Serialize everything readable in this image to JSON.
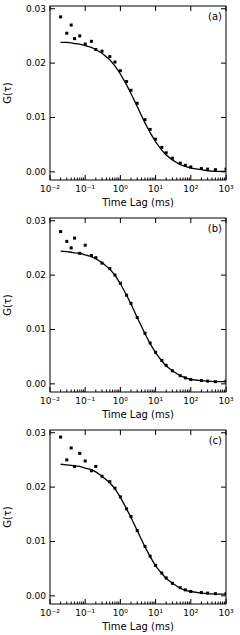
{
  "chart_data": [
    {
      "type": "scatter",
      "title": "(a)",
      "x_label": "Time Lag (ms)",
      "y_label": "G(τ)",
      "log": "x",
      "x": [
        0.02,
        0.03,
        0.04,
        0.05,
        0.07,
        0.1,
        0.15,
        0.2,
        0.3,
        0.5,
        0.7,
        1,
        1.5,
        2,
        3,
        5,
        7,
        10,
        15,
        20,
        30,
        50,
        70,
        100,
        200,
        300,
        500,
        1000
      ],
      "xlim": [
        0.01,
        1000
      ],
      "ylim": [
        -0.0015,
        0.0305
      ],
      "xticks": [
        {
          "value": 0.01,
          "label": "10⁻²"
        },
        {
          "value": 0.1,
          "label": "10⁻¹"
        },
        {
          "value": 1,
          "label": "10⁰"
        },
        {
          "value": 10,
          "label": "10¹"
        },
        {
          "value": 100,
          "label": "10²"
        },
        {
          "value": 1000,
          "label": "10³"
        }
      ],
      "yticks": [
        {
          "value": 0,
          "label": "0.00"
        },
        {
          "value": 0.01,
          "label": "0.01"
        },
        {
          "value": 0.02,
          "label": "0.02"
        },
        {
          "value": 0.03,
          "label": "0.03"
        }
      ],
      "series": [
        {
          "type": "scatter",
          "marker": "square",
          "color": "#000000",
          "values": [
            0.0285,
            0.0255,
            0.027,
            0.0245,
            0.025,
            0.0235,
            0.024,
            0.0225,
            0.0222,
            0.0212,
            0.0202,
            0.0186,
            0.0166,
            0.015,
            0.0126,
            0.0096,
            0.0078,
            0.006,
            0.0045,
            0.0035,
            0.0025,
            0.0016,
            0.0012,
            0.0009,
            0.0006,
            0.0005,
            0.0004,
            0.0005
          ]
        },
        {
          "type": "line",
          "line_style": "solid",
          "color": "#000000",
          "values": [
            0.0238,
            0.0238,
            0.0237,
            0.0236,
            0.0235,
            0.0232,
            0.0229,
            0.0225,
            0.0218,
            0.0206,
            0.0195,
            0.018,
            0.016,
            0.0144,
            0.012,
            0.009,
            0.0072,
            0.0055,
            0.004,
            0.0031,
            0.0022,
            0.0013,
            0.001,
            0.0007,
            0.0004,
            0.0002,
            0.0001,
            0.0001
          ]
        }
      ]
    },
    {
      "type": "scatter",
      "title": "(b)",
      "x_label": "Time Lag (ms)",
      "y_label": "G(τ)",
      "log": "x",
      "x": [
        0.02,
        0.03,
        0.04,
        0.05,
        0.07,
        0.1,
        0.15,
        0.2,
        0.3,
        0.5,
        0.7,
        1,
        1.5,
        2,
        3,
        5,
        7,
        10,
        15,
        20,
        30,
        50,
        70,
        100,
        200,
        300,
        500,
        1000
      ],
      "xlim": [
        0.01,
        1000
      ],
      "ylim": [
        -0.0015,
        0.0305
      ],
      "xticks": [
        {
          "value": 0.01,
          "label": "10⁻²"
        },
        {
          "value": 0.1,
          "label": "10⁻¹"
        },
        {
          "value": 1,
          "label": "10⁰"
        },
        {
          "value": 10,
          "label": "10¹"
        },
        {
          "value": 100,
          "label": "10²"
        },
        {
          "value": 1000,
          "label": "10³"
        }
      ],
      "yticks": [
        {
          "value": 0,
          "label": "0.00"
        },
        {
          "value": 0.01,
          "label": "0.01"
        },
        {
          "value": 0.02,
          "label": "0.02"
        },
        {
          "value": 0.03,
          "label": "0.03"
        }
      ],
      "series": [
        {
          "type": "scatter",
          "marker": "square",
          "color": "#000000",
          "values": [
            0.028,
            0.0262,
            0.025,
            0.0268,
            0.024,
            0.0255,
            0.0236,
            0.0232,
            0.0222,
            0.0212,
            0.02,
            0.0185,
            0.0163,
            0.0148,
            0.0122,
            0.0093,
            0.0075,
            0.0058,
            0.0043,
            0.0034,
            0.0024,
            0.0015,
            0.0011,
            0.0008,
            0.0006,
            0.0005,
            0.0004,
            0.0005
          ]
        },
        {
          "type": "line",
          "line_style": "solid",
          "color": "#000000",
          "values": [
            0.0244,
            0.0243,
            0.0242,
            0.0241,
            0.024,
            0.0237,
            0.0234,
            0.023,
            0.0223,
            0.0211,
            0.02,
            0.0184,
            0.0163,
            0.0147,
            0.0122,
            0.0092,
            0.0074,
            0.0057,
            0.0042,
            0.0033,
            0.0024,
            0.0015,
            0.0011,
            0.0008,
            0.0006,
            0.0005,
            0.0004,
            0.0004
          ]
        }
      ]
    },
    {
      "type": "scatter",
      "title": "(c)",
      "x_label": "Time Lag (ms)",
      "y_label": "G(τ)",
      "log": "x",
      "x": [
        0.02,
        0.03,
        0.04,
        0.05,
        0.07,
        0.1,
        0.15,
        0.2,
        0.3,
        0.5,
        0.7,
        1,
        1.5,
        2,
        3,
        5,
        7,
        10,
        15,
        20,
        30,
        50,
        70,
        100,
        200,
        300,
        500,
        1000
      ],
      "xlim": [
        0.01,
        1000
      ],
      "ylim": [
        -0.0015,
        0.0305
      ],
      "xticks": [
        {
          "value": 0.01,
          "label": "10⁻²"
        },
        {
          "value": 0.1,
          "label": "10⁻¹"
        },
        {
          "value": 1,
          "label": "10⁰"
        },
        {
          "value": 10,
          "label": "10¹"
        },
        {
          "value": 100,
          "label": "10²"
        },
        {
          "value": 1000,
          "label": "10³"
        }
      ],
      "yticks": [
        {
          "value": 0,
          "label": "0.00"
        },
        {
          "value": 0.01,
          "label": "0.01"
        },
        {
          "value": 0.02,
          "label": "0.02"
        },
        {
          "value": 0.03,
          "label": "0.03"
        }
      ],
      "series": [
        {
          "type": "scatter",
          "marker": "square",
          "color": "#000000",
          "values": [
            0.0292,
            0.025,
            0.0272,
            0.0238,
            0.0262,
            0.0248,
            0.023,
            0.0238,
            0.022,
            0.021,
            0.0198,
            0.0182,
            0.016,
            0.0146,
            0.012,
            0.0091,
            0.0073,
            0.0056,
            0.0042,
            0.0033,
            0.0023,
            0.0015,
            0.0011,
            0.0008,
            0.0006,
            0.0005,
            0.0004,
            0.0004
          ]
        },
        {
          "type": "line",
          "line_style": "solid",
          "color": "#000000",
          "values": [
            0.0242,
            0.0241,
            0.024,
            0.0239,
            0.0238,
            0.0235,
            0.0232,
            0.0228,
            0.022,
            0.0208,
            0.0197,
            0.0181,
            0.016,
            0.0144,
            0.012,
            0.009,
            0.0072,
            0.0055,
            0.0041,
            0.0032,
            0.0023,
            0.0014,
            0.001,
            0.0008,
            0.0005,
            0.0004,
            0.0003,
            0.0003
          ]
        }
      ]
    }
  ]
}
